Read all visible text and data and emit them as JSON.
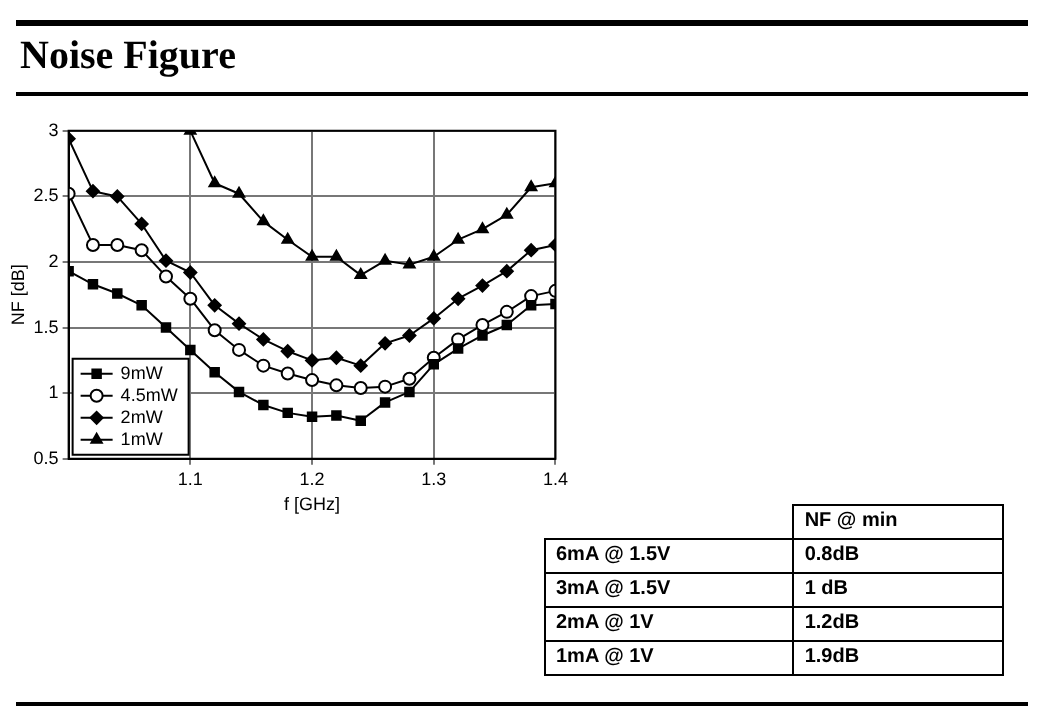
{
  "chart_data": {
    "type": "line",
    "title": "Noise Figure",
    "xlabel": "f [GHz]",
    "ylabel": "NF [dB]",
    "x": [
      1.0,
      1.02,
      1.04,
      1.06,
      1.08,
      1.1,
      1.12,
      1.14,
      1.16,
      1.18,
      1.2,
      1.22,
      1.24,
      1.26,
      1.28,
      1.3,
      1.32,
      1.34,
      1.36,
      1.38,
      1.4
    ],
    "series": [
      {
        "name": "9mW",
        "color": "#000000",
        "marker": "square",
        "values": [
          1.93,
          1.83,
          1.76,
          1.67,
          1.5,
          1.33,
          1.16,
          1.01,
          0.91,
          0.85,
          0.82,
          0.83,
          0.79,
          0.93,
          1.01,
          1.22,
          1.34,
          1.44,
          1.52,
          1.67,
          1.68
        ]
      },
      {
        "name": "4.5mW",
        "color": "#000000",
        "marker": "circle",
        "values": [
          2.52,
          2.13,
          2.13,
          2.09,
          1.89,
          1.72,
          1.48,
          1.33,
          1.21,
          1.15,
          1.1,
          1.06,
          1.04,
          1.05,
          1.11,
          1.27,
          1.41,
          1.52,
          1.62,
          1.74,
          1.78
        ]
      },
      {
        "name": "2mW",
        "color": "#000000",
        "marker": "diamond",
        "values": [
          2.94,
          2.54,
          2.5,
          2.29,
          2.01,
          1.92,
          1.67,
          1.53,
          1.41,
          1.32,
          1.25,
          1.27,
          1.21,
          1.38,
          1.44,
          1.57,
          1.72,
          1.82,
          1.93,
          2.09,
          2.13
        ]
      },
      {
        "name": "1mW",
        "color": "#000000",
        "marker": "triangle",
        "values": [
          null,
          null,
          null,
          null,
          null,
          3.0,
          2.6,
          2.52,
          2.31,
          2.17,
          2.04,
          2.04,
          1.9,
          2.01,
          1.98,
          2.04,
          2.17,
          2.25,
          2.36,
          2.57,
          2.6
        ]
      }
    ],
    "xlim": [
      1.0,
      1.4
    ],
    "xticks": [
      1.1,
      1.2,
      1.3,
      1.4
    ],
    "ylim": [
      0.5,
      3
    ],
    "yticks": [
      0.5,
      1,
      1.5,
      2,
      2.5,
      3
    ],
    "grid": true,
    "line_style": "solid",
    "legend": "bottom left",
    "annotations": [
      "NF @ min",
      "6mA @ 1.5V",
      "0.8dB",
      "3mA @ 1.5V",
      "1 dB",
      "2mA @ 1V",
      "1.2dB",
      "1mA @ 1V",
      "1.9dB"
    ]
  }
}
